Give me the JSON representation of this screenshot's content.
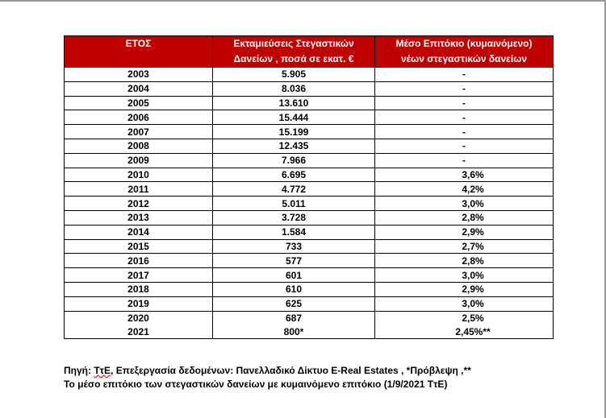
{
  "table": {
    "headers": [
      [
        "ΕΤΟΣ"
      ],
      [
        "Εκταμιεύσεις Στεγαστικών",
        "Δανείων , ποσά σε εκατ. €"
      ],
      [
        "Μέσο Επιτόκιο (κυμαινόμενο)",
        "νέων στεγαστικών δανείων"
      ]
    ],
    "rows": [
      {
        "year": "2003",
        "amount": "5.905",
        "rate": "-"
      },
      {
        "year": "2004",
        "amount": "8.036",
        "rate": "-"
      },
      {
        "year": "2005",
        "amount": "13.610",
        "rate": "-"
      },
      {
        "year": "2006",
        "amount": "15.444",
        "rate": "-"
      },
      {
        "year": "2007",
        "amount": "15.199",
        "rate": "-"
      },
      {
        "year": "2008",
        "amount": "12.435",
        "rate": "-"
      },
      {
        "year": "2009",
        "amount": "7.966",
        "rate": "-"
      },
      {
        "year": "2010",
        "amount": "6.695",
        "rate": "3,6%"
      },
      {
        "year": "2011",
        "amount": "4.772",
        "rate": "4,2%"
      },
      {
        "year": "2012",
        "amount": "5.011",
        "rate": "3,0%"
      },
      {
        "year": "2013",
        "amount": "3.728",
        "rate": "2,8%"
      },
      {
        "year": "2014",
        "amount": "1.584",
        "rate": "2,9%"
      },
      {
        "year": "2015",
        "amount": "733",
        "rate": "2,7%"
      },
      {
        "year": "2016",
        "amount": "577",
        "rate": "2,8%"
      },
      {
        "year": "2017",
        "amount": "601",
        "rate": "3,0%"
      },
      {
        "year": "2018",
        "amount": "610",
        "rate": "2,9%"
      },
      {
        "year": "2019",
        "amount": "625",
        "rate": "3,0%"
      },
      {
        "year": "2020",
        "amount": "687",
        "rate": "2,5%"
      },
      {
        "year": "2021",
        "amount": "800*",
        "rate": "2,45%**"
      }
    ]
  },
  "source": {
    "prefix": "Πηγή: ",
    "tte": "ΤτΕ",
    "line1_rest": ", Επεξεργασία δεδομένων: Πανελλαδικό Δίκτυο E-Real Estates , *Πρόβλεψη ,**",
    "line2": "Το μέσο επιτόκιο των στεγαστικών δανείων με κυμαινόμενο επιτόκιο (1/9/2021 ΤτΕ)"
  }
}
